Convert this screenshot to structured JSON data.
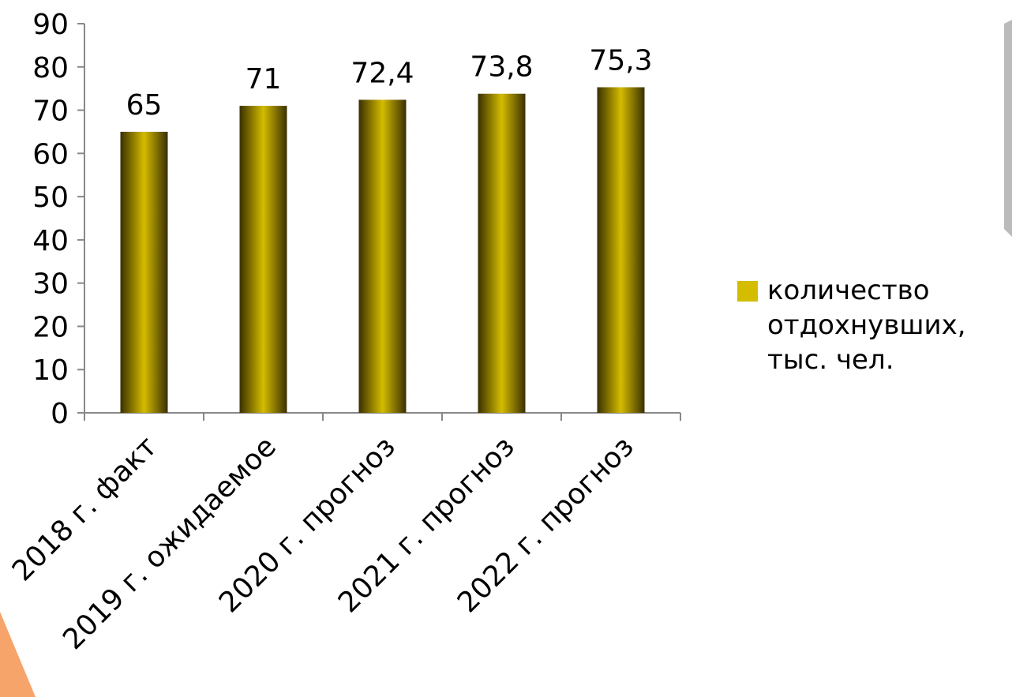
{
  "chart_data": {
    "type": "bar",
    "categories": [
      "2018 г. факт",
      "2019 г. ожидаемое",
      "2020 г. прогноз",
      "2021 г. прогноз",
      "2022 г. прогноз"
    ],
    "series": [
      {
        "name": "количество отдохнувших, тыс. чел.",
        "color": "#d4bc00",
        "values": [
          65,
          71,
          72.4,
          73.8,
          75.3
        ],
        "value_labels": [
          "65",
          "71",
          "72,4",
          "73,8",
          "75,3"
        ]
      }
    ],
    "ylim": [
      0,
      90
    ],
    "yticks": [
      0,
      10,
      20,
      30,
      40,
      50,
      60,
      70,
      80,
      90
    ]
  }
}
